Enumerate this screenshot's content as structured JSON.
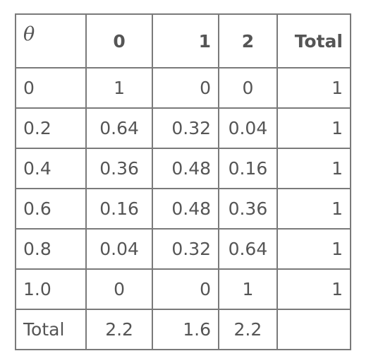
{
  "table": {
    "headers": [
      "θ",
      "0",
      "1",
      "2",
      "Total"
    ],
    "rows": [
      [
        "0",
        "1",
        "0",
        "0",
        "1"
      ],
      [
        "0.2",
        "0.64",
        "0.32",
        "0.04",
        "1"
      ],
      [
        "0.4",
        "0.36",
        "0.48",
        "0.16",
        "1"
      ],
      [
        "0.6",
        "0.16",
        "0.48",
        "0.36",
        "1"
      ],
      [
        "0.8",
        "0.04",
        "0.32",
        "0.64",
        "1"
      ],
      [
        "1.0",
        "0",
        "0",
        "1",
        "1"
      ],
      [
        "Total",
        "2.2",
        "1.6",
        "2.2",
        ""
      ]
    ]
  },
  "colors": {
    "text": "#555555",
    "border": "#7a7a7a"
  }
}
